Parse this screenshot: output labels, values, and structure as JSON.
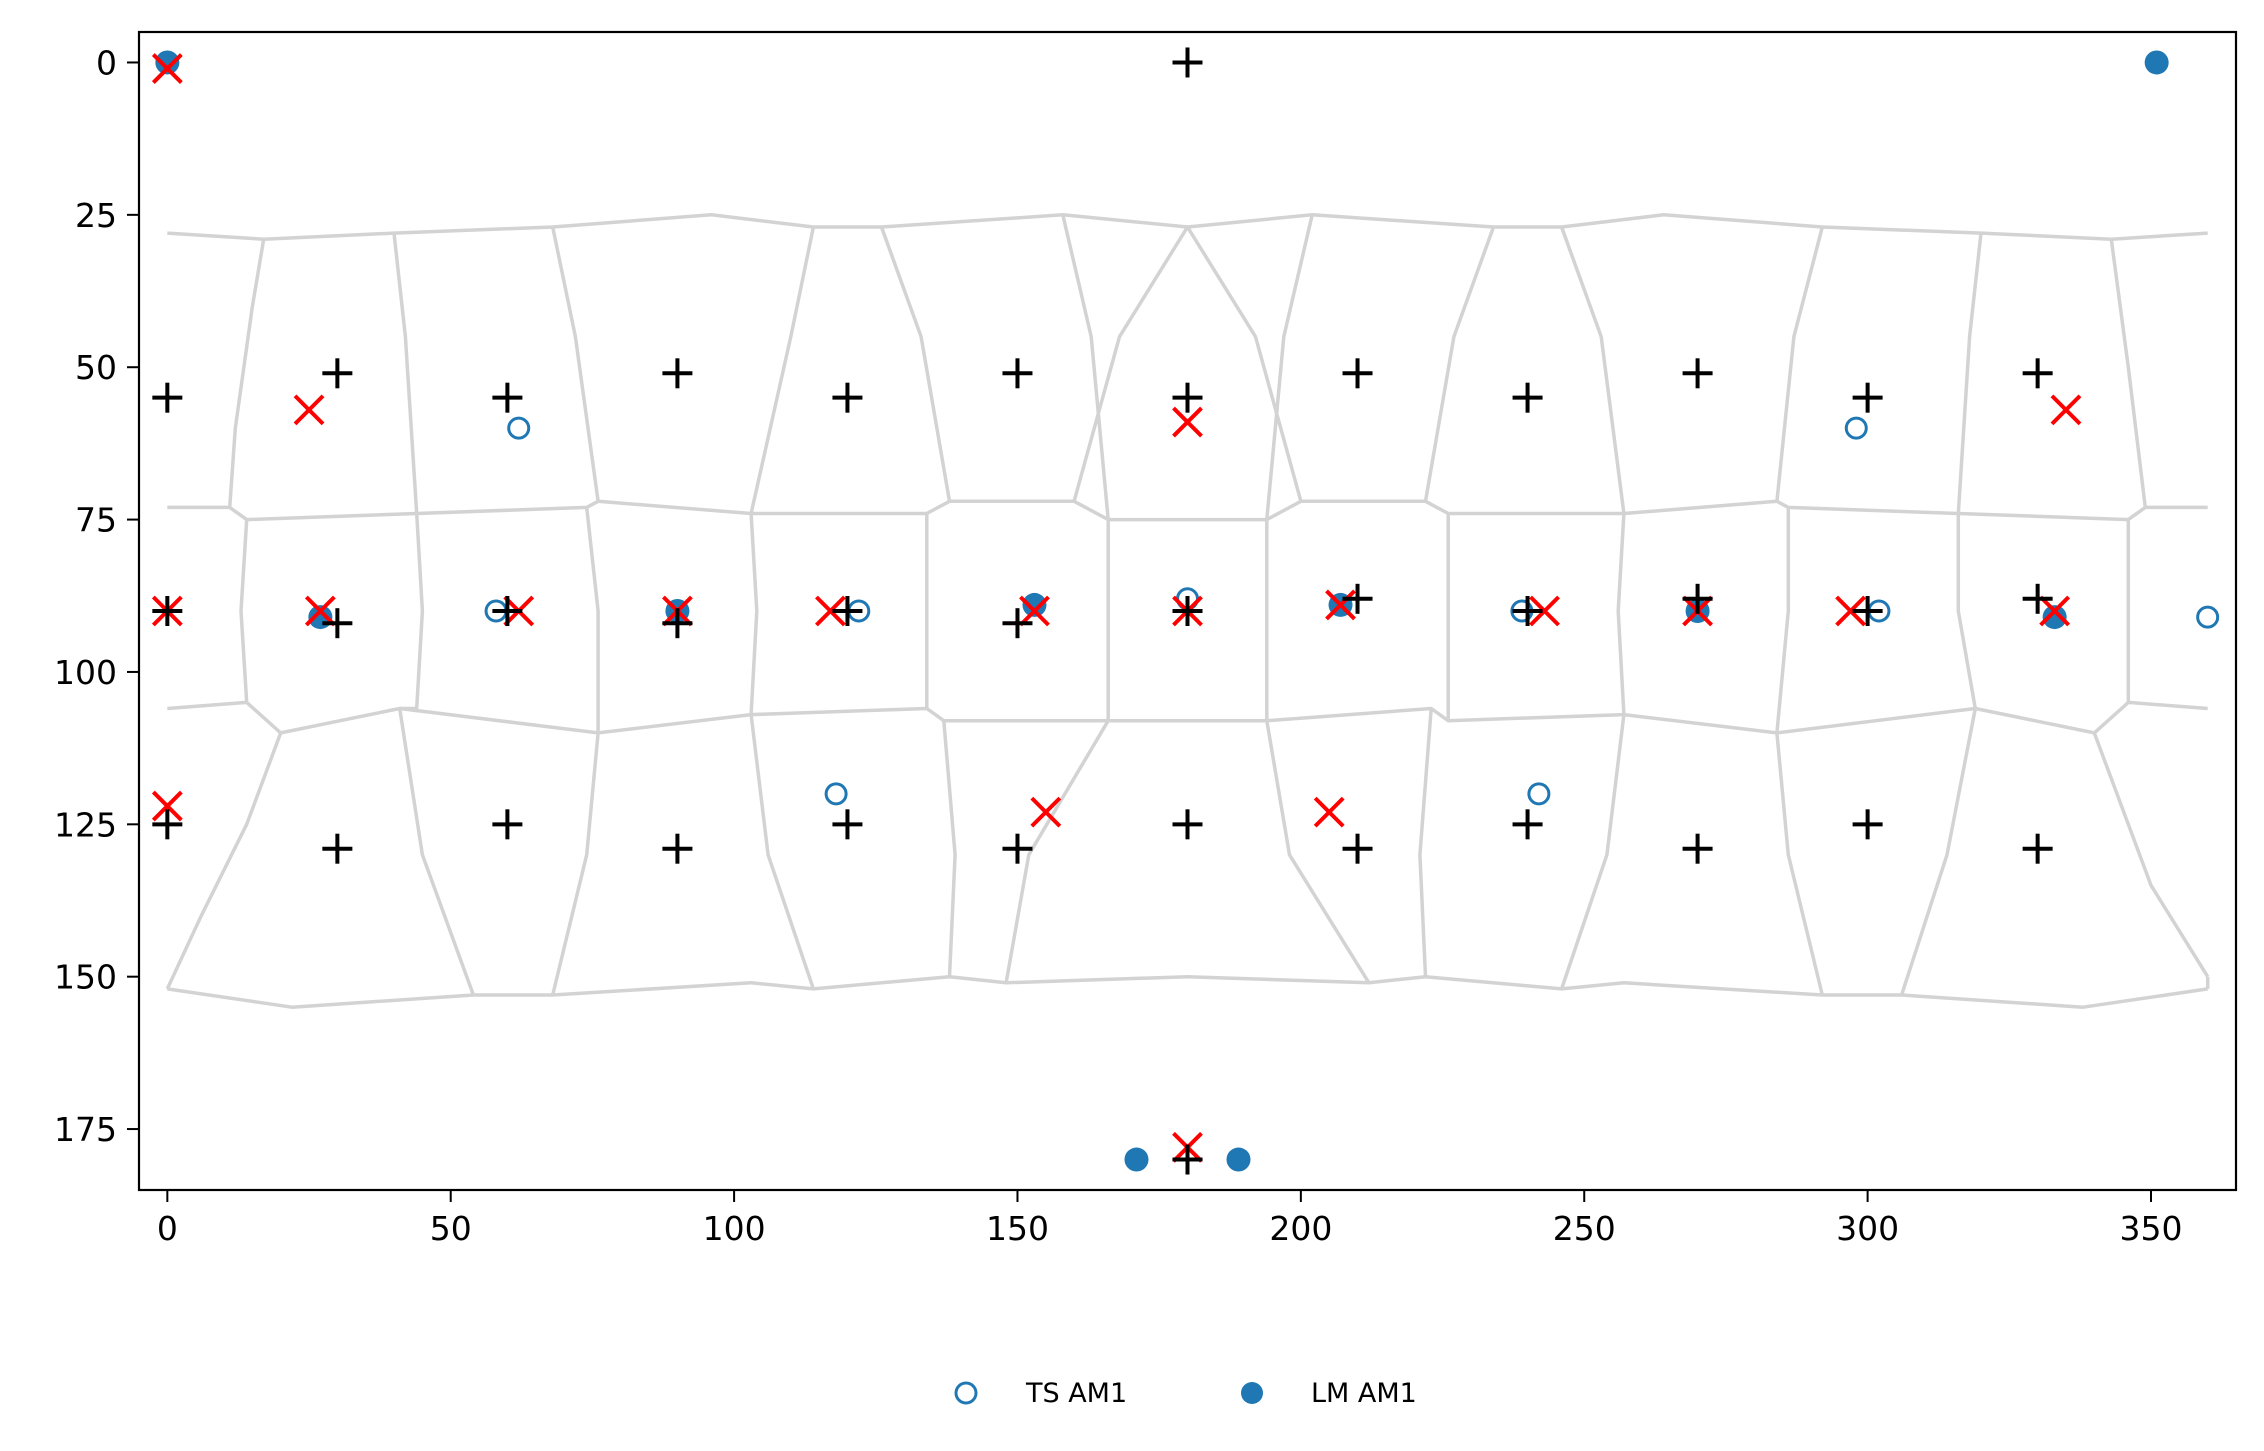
{
  "chart_data": {
    "type": "scatter",
    "title": "",
    "xlabel": "",
    "ylabel": "",
    "xlim": [
      -5,
      365
    ],
    "ylim": [
      185,
      -5
    ],
    "y_inverted": true,
    "x_ticks": [
      0,
      50,
      100,
      150,
      200,
      250,
      300,
      350
    ],
    "y_ticks": [
      0,
      25,
      50,
      75,
      100,
      125,
      150,
      175
    ],
    "grid": false,
    "legend_position": "bottom-center",
    "colors": {
      "ts": "#1f77b4",
      "lm": "#1f77b4",
      "cross": "#ff0000",
      "plus": "#000000",
      "cell_lines": "#d3d3d3"
    },
    "series": [
      {
        "name": "TS AM1",
        "marker": "open-circle",
        "points": [
          [
            0,
            0
          ],
          [
            62,
            60
          ],
          [
            58,
            90
          ],
          [
            90,
            90
          ],
          [
            118,
            120
          ],
          [
            122,
            90
          ],
          [
            153,
            89
          ],
          [
            180,
            88
          ],
          [
            207,
            89
          ],
          [
            239,
            90
          ],
          [
            242,
            120
          ],
          [
            270,
            90
          ],
          [
            298,
            60
          ],
          [
            302,
            90
          ],
          [
            333,
            91
          ],
          [
            360,
            91
          ]
        ]
      },
      {
        "name": "LM AM1",
        "marker": "filled-circle",
        "points": [
          [
            0,
            0
          ],
          [
            351,
            0
          ],
          [
            27,
            91
          ],
          [
            90,
            90
          ],
          [
            153,
            89
          ],
          [
            207,
            89
          ],
          [
            270,
            90
          ],
          [
            333,
            91
          ],
          [
            171,
            180
          ],
          [
            189,
            180
          ]
        ]
      },
      {
        "marker": "x-cross",
        "points": [
          [
            0,
            1
          ],
          [
            25,
            57
          ],
          [
            180,
            59
          ],
          [
            335,
            57
          ],
          [
            0,
            90
          ],
          [
            27,
            90
          ],
          [
            62,
            90
          ],
          [
            90,
            90
          ],
          [
            117,
            90
          ],
          [
            153,
            90
          ],
          [
            180,
            90
          ],
          [
            207,
            89
          ],
          [
            243,
            90
          ],
          [
            270,
            90
          ],
          [
            297,
            90
          ],
          [
            333,
            90
          ],
          [
            0,
            122
          ],
          [
            155,
            123
          ],
          [
            205,
            123
          ],
          [
            180,
            178
          ]
        ]
      },
      {
        "marker": "plus",
        "points": [
          [
            180,
            0
          ],
          [
            0,
            55
          ],
          [
            30,
            51
          ],
          [
            60,
            55
          ],
          [
            90,
            51
          ],
          [
            120,
            55
          ],
          [
            150,
            51
          ],
          [
            180,
            55
          ],
          [
            210,
            51
          ],
          [
            240,
            55
          ],
          [
            270,
            51
          ],
          [
            300,
            55
          ],
          [
            330,
            51
          ],
          [
            0,
            90
          ],
          [
            30,
            92
          ],
          [
            60,
            90
          ],
          [
            90,
            92
          ],
          [
            120,
            90
          ],
          [
            150,
            92
          ],
          [
            180,
            90
          ],
          [
            210,
            88
          ],
          [
            240,
            90
          ],
          [
            270,
            88
          ],
          [
            300,
            90
          ],
          [
            330,
            88
          ],
          [
            0,
            125
          ],
          [
            30,
            129
          ],
          [
            60,
            125
          ],
          [
            90,
            129
          ],
          [
            120,
            125
          ],
          [
            150,
            129
          ],
          [
            180,
            125
          ],
          [
            210,
            129
          ],
          [
            240,
            125
          ],
          [
            270,
            129
          ],
          [
            300,
            125
          ],
          [
            330,
            129
          ],
          [
            180,
            180
          ]
        ]
      }
    ],
    "cell_boundaries": [
      [
        [
          0,
          28
        ],
        [
          17,
          29
        ],
        [
          40,
          28
        ],
        [
          68,
          27
        ],
        [
          96,
          25
        ],
        [
          114,
          27
        ],
        [
          126,
          27
        ],
        [
          158,
          25
        ],
        [
          180,
          27
        ],
        [
          202,
          25
        ],
        [
          234,
          27
        ],
        [
          246,
          27
        ],
        [
          264,
          25
        ],
        [
          292,
          27
        ],
        [
          320,
          28
        ],
        [
          343,
          29
        ],
        [
          360,
          28
        ]
      ],
      [
        [
          0,
          73
        ],
        [
          11,
          73
        ],
        [
          14,
          75
        ],
        [
          44,
          74
        ],
        [
          74,
          73
        ],
        [
          76,
          72
        ],
        [
          103,
          74
        ],
        [
          134,
          74
        ],
        [
          138,
          72
        ],
        [
          160,
          72
        ],
        [
          166,
          75
        ],
        [
          194,
          75
        ],
        [
          200,
          72
        ],
        [
          222,
          72
        ],
        [
          226,
          74
        ],
        [
          257,
          74
        ],
        [
          284,
          72
        ],
        [
          286,
          73
        ],
        [
          316,
          74
        ],
        [
          346,
          75
        ],
        [
          349,
          73
        ],
        [
          360,
          73
        ]
      ],
      [
        [
          0,
          106
        ],
        [
          14,
          105
        ],
        [
          20,
          110
        ],
        [
          41,
          106
        ],
        [
          76,
          110
        ],
        [
          103,
          107
        ],
        [
          134,
          106
        ],
        [
          137,
          108
        ],
        [
          166,
          108
        ],
        [
          194,
          108
        ],
        [
          223,
          106
        ],
        [
          226,
          108
        ],
        [
          257,
          107
        ],
        [
          284,
          110
        ],
        [
          319,
          106
        ],
        [
          340,
          110
        ],
        [
          346,
          105
        ],
        [
          360,
          106
        ]
      ],
      [
        [
          0,
          152
        ],
        [
          22,
          155
        ],
        [
          54,
          153
        ],
        [
          68,
          153
        ],
        [
          103,
          151
        ],
        [
          114,
          152
        ],
        [
          138,
          150
        ],
        [
          148,
          151
        ],
        [
          180,
          150
        ],
        [
          212,
          151
        ],
        [
          222,
          150
        ],
        [
          246,
          152
        ],
        [
          257,
          151
        ],
        [
          292,
          153
        ],
        [
          306,
          153
        ],
        [
          338,
          155
        ],
        [
          360,
          152
        ]
      ],
      [
        [
          17,
          29
        ],
        [
          15,
          40
        ],
        [
          12,
          60
        ],
        [
          11,
          73
        ]
      ],
      [
        [
          40,
          28
        ],
        [
          42,
          45
        ],
        [
          44,
          74
        ]
      ],
      [
        [
          68,
          27
        ],
        [
          72,
          45
        ],
        [
          76,
          72
        ]
      ],
      [
        [
          114,
          27
        ],
        [
          110,
          45
        ],
        [
          103,
          74
        ]
      ],
      [
        [
          126,
          27
        ],
        [
          133,
          45
        ],
        [
          138,
          72
        ]
      ],
      [
        [
          158,
          25
        ],
        [
          163,
          45
        ],
        [
          166,
          75
        ]
      ],
      [
        [
          202,
          25
        ],
        [
          197,
          45
        ],
        [
          194,
          75
        ]
      ],
      [
        [
          234,
          27
        ],
        [
          227,
          45
        ],
        [
          222,
          72
        ]
      ],
      [
        [
          246,
          27
        ],
        [
          253,
          45
        ],
        [
          257,
          74
        ]
      ],
      [
        [
          292,
          27
        ],
        [
          287,
          45
        ],
        [
          284,
          72
        ]
      ],
      [
        [
          320,
          28
        ],
        [
          318,
          45
        ],
        [
          316,
          74
        ]
      ],
      [
        [
          343,
          29
        ],
        [
          346,
          50
        ],
        [
          349,
          73
        ]
      ],
      [
        [
          180,
          27
        ],
        [
          168,
          45
        ],
        [
          160,
          72
        ]
      ],
      [
        [
          180,
          27
        ],
        [
          192,
          45
        ],
        [
          200,
          72
        ]
      ],
      [
        [
          44,
          74
        ],
        [
          45,
          90
        ],
        [
          44,
          106
        ],
        [
          41,
          106
        ]
      ],
      [
        [
          14,
          75
        ],
        [
          13,
          90
        ],
        [
          14,
          105
        ]
      ],
      [
        [
          74,
          73
        ],
        [
          76,
          90
        ],
        [
          76,
          110
        ]
      ],
      [
        [
          103,
          74
        ],
        [
          104,
          90
        ],
        [
          103,
          107
        ]
      ],
      [
        [
          134,
          74
        ],
        [
          134,
          90
        ],
        [
          134,
          106
        ]
      ],
      [
        [
          166,
          75
        ],
        [
          166,
          90
        ],
        [
          166,
          108
        ]
      ],
      [
        [
          194,
          75
        ],
        [
          194,
          90
        ],
        [
          194,
          108
        ]
      ],
      [
        [
          226,
          74
        ],
        [
          226,
          90
        ],
        [
          226,
          108
        ]
      ],
      [
        [
          257,
          74
        ],
        [
          256,
          90
        ],
        [
          257,
          107
        ]
      ],
      [
        [
          286,
          73
        ],
        [
          286,
          90
        ],
        [
          284,
          110
        ]
      ],
      [
        [
          316,
          74
        ],
        [
          316,
          90
        ],
        [
          319,
          106
        ]
      ],
      [
        [
          346,
          75
        ],
        [
          346,
          90
        ],
        [
          346,
          105
        ]
      ],
      [
        [
          0,
          152
        ],
        [
          6,
          140
        ],
        [
          14,
          125
        ],
        [
          20,
          110
        ]
      ],
      [
        [
          41,
          106
        ],
        [
          45,
          130
        ],
        [
          54,
          153
        ]
      ],
      [
        [
          76,
          110
        ],
        [
          74,
          130
        ],
        [
          68,
          153
        ]
      ],
      [
        [
          103,
          107
        ],
        [
          106,
          130
        ],
        [
          114,
          152
        ]
      ],
      [
        [
          137,
          108
        ],
        [
          139,
          130
        ],
        [
          138,
          150
        ]
      ],
      [
        [
          148,
          151
        ],
        [
          152,
          130
        ],
        [
          166,
          108
        ]
      ],
      [
        [
          194,
          108
        ],
        [
          198,
          130
        ],
        [
          212,
          151
        ]
      ],
      [
        [
          223,
          106
        ],
        [
          221,
          130
        ],
        [
          222,
          150
        ]
      ],
      [
        [
          257,
          107
        ],
        [
          254,
          130
        ],
        [
          246,
          152
        ]
      ],
      [
        [
          284,
          110
        ],
        [
          286,
          130
        ],
        [
          292,
          153
        ]
      ],
      [
        [
          319,
          106
        ],
        [
          314,
          130
        ],
        [
          306,
          153
        ]
      ],
      [
        [
          340,
          110
        ],
        [
          350,
          135
        ],
        [
          360,
          150
        ]
      ],
      [
        [
          360,
          28
        ],
        [
          360,
          28
        ]
      ],
      [
        [
          360,
          73
        ],
        [
          360,
          73
        ]
      ],
      [
        [
          360,
          106
        ],
        [
          360,
          106
        ]
      ],
      [
        [
          360,
          150
        ],
        [
          360,
          152
        ]
      ]
    ]
  }
}
